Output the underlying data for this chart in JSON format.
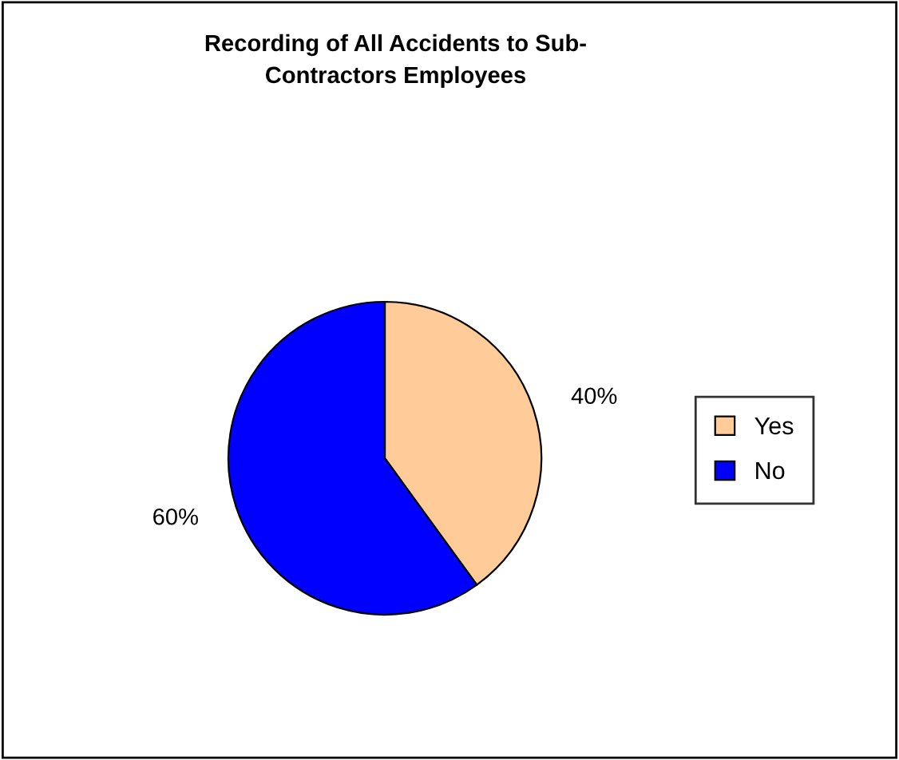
{
  "chart_data": {
    "type": "pie",
    "title": "Recording of All Accidents to Sub-\nContractors Employees",
    "categories": [
      "Yes",
      "No"
    ],
    "values": [
      40,
      60
    ],
    "colors": [
      "#ffcc99",
      "#0000ff"
    ],
    "value_labels": [
      "40%",
      "60%"
    ],
    "legend": "right"
  }
}
